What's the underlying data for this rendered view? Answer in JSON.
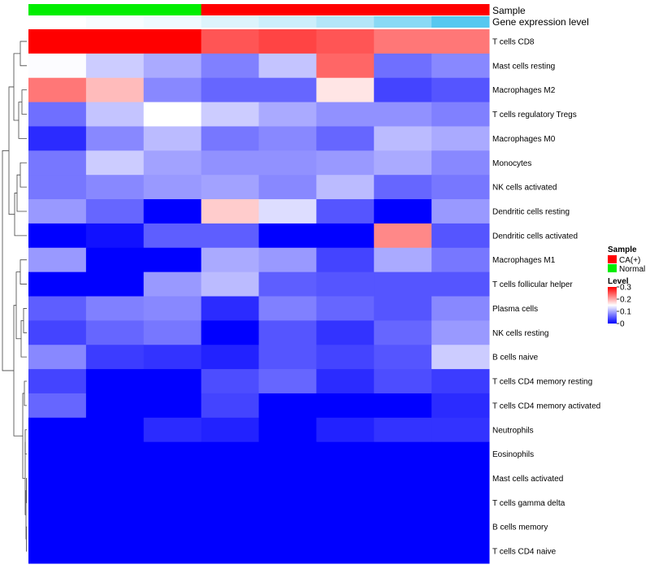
{
  "chart_data": {
    "type": "heatmap",
    "title": "",
    "xlabel": "",
    "ylabel": "",
    "annotation_tracks": [
      {
        "name": "Sample",
        "values": [
          "Normal",
          "Normal",
          "Normal",
          "CA(+)",
          "CA(+)",
          "CA(+)",
          "CA(+)",
          "CA(+)"
        ],
        "palette": {
          "CA(+)": "#ff0000",
          "Normal": "#00ee00"
        }
      },
      {
        "name": "Gene expression level",
        "values": [
          0.0,
          0.05,
          0.1,
          0.2,
          0.3,
          0.45,
          0.7,
          1.0
        ],
        "color_low": "#ffffff",
        "color_high": "#56c8f0"
      }
    ],
    "rows": [
      "T cells CD8",
      "Mast cells resting",
      "Macrophages M2",
      "T cells regulatory  Tregs",
      "Macrophages M0",
      "Monocytes",
      "NK cells activated",
      "Dendritic cells resting",
      "Dendritic cells activated",
      "Macrophages M1",
      "T cells follicular helper",
      "Plasma cells",
      "NK cells resting",
      "B cells naive",
      "T cells CD4 memory resting",
      "T cells CD4 memory activated",
      "Neutrophils",
      "Eosinophils",
      "Mast cells activated",
      "T cells gamma delta",
      "B cells memory",
      "T cells CD4 naive"
    ],
    "values": [
      [
        0.3,
        0.305,
        0.31,
        0.25,
        0.26,
        0.25,
        0.23,
        0.23
      ],
      [
        0.148,
        0.12,
        0.1,
        0.075,
        0.115,
        0.24,
        0.065,
        0.08
      ],
      [
        0.23,
        0.19,
        0.08,
        0.06,
        0.06,
        0.165,
        0.04,
        0.05
      ],
      [
        0.065,
        0.115,
        0.15,
        0.12,
        0.1,
        0.085,
        0.085,
        0.075
      ],
      [
        0.025,
        0.08,
        0.11,
        0.07,
        0.08,
        0.06,
        0.11,
        0.1
      ],
      [
        0.07,
        0.12,
        0.095,
        0.085,
        0.085,
        0.09,
        0.1,
        0.08
      ],
      [
        0.07,
        0.08,
        0.09,
        0.095,
        0.08,
        0.11,
        0.06,
        0.07
      ],
      [
        0.09,
        0.06,
        0.0,
        0.18,
        0.13,
        0.05,
        0.0,
        0.09
      ],
      [
        0.0,
        0.01,
        0.055,
        0.055,
        0.0,
        0.0,
        0.22,
        0.05
      ],
      [
        0.09,
        0.0,
        0.0,
        0.1,
        0.09,
        0.04,
        0.1,
        0.07
      ],
      [
        0.0,
        0.0,
        0.09,
        0.11,
        0.055,
        0.05,
        0.05,
        0.05
      ],
      [
        0.055,
        0.075,
        0.08,
        0.025,
        0.075,
        0.06,
        0.05,
        0.08
      ],
      [
        0.04,
        0.06,
        0.07,
        0.0,
        0.05,
        0.03,
        0.06,
        0.09
      ],
      [
        0.08,
        0.035,
        0.03,
        0.02,
        0.05,
        0.04,
        0.05,
        0.12
      ],
      [
        0.04,
        0.0,
        0.0,
        0.045,
        0.06,
        0.025,
        0.045,
        0.035
      ],
      [
        0.06,
        0.0,
        0.0,
        0.04,
        0.0,
        0.0,
        0.0,
        0.025
      ],
      [
        0.0,
        0.0,
        0.025,
        0.02,
        0.0,
        0.02,
        0.03,
        0.03
      ],
      [
        0.0,
        0.0,
        0.0,
        0.0,
        0.0,
        0.0,
        0.0,
        0.0
      ],
      [
        0.0,
        0.0,
        0.0,
        0.0,
        0.0,
        0.0,
        0.0,
        0.0
      ],
      [
        0.0,
        0.0,
        0.0,
        0.0,
        0.0,
        0.0,
        0.0,
        0.0
      ],
      [
        0.0,
        0.0,
        0.0,
        0.0,
        0.0,
        0.0,
        0.0,
        0.0
      ],
      [
        0.0,
        0.0,
        0.0,
        0.0,
        0.0,
        0.0,
        0.0,
        0.0
      ]
    ],
    "color_scale": {
      "min": 0,
      "mid": 0.15,
      "max": 0.3,
      "low": "#0000ff",
      "mid_color": "#ffffff",
      "high": "#ff0000"
    },
    "legend": {
      "sample_title": "Sample",
      "sample_entries": [
        {
          "label": "CA(+)",
          "color": "#ff0000"
        },
        {
          "label": "Normal",
          "color": "#00ee00"
        }
      ],
      "level_title": "Level",
      "level_ticks": [
        {
          "label": "0.3",
          "value": 0.3
        },
        {
          "label": "0.2",
          "value": 0.2
        },
        {
          "label": "0.1",
          "value": 0.1
        },
        {
          "label": "0",
          "value": 0.0
        }
      ],
      "placement": "right"
    },
    "row_dendrogram": {
      "merges": [
        [
          0,
          1,
          0.08
        ],
        [
          2,
          3,
          0.06
        ],
        [
          -2,
          4,
          0.1
        ],
        [
          -1,
          -3,
          0.16
        ],
        [
          5,
          6,
          0.08
        ],
        [
          -5,
          7,
          0.12
        ],
        [
          -6,
          8,
          0.15
        ],
        [
          -7,
          -4,
          0.22
        ],
        [
          9,
          10,
          0.08
        ],
        [
          11,
          12,
          0.04
        ],
        [
          -10,
          13,
          0.07
        ],
        [
          -9,
          -11,
          0.13
        ],
        [
          14,
          15,
          0.03
        ],
        [
          16,
          17,
          0.02
        ],
        [
          18,
          19,
          0.005
        ],
        [
          20,
          21,
          0.005
        ],
        [
          -15,
          -16,
          0.01
        ],
        [
          -14,
          -17,
          0.02
        ],
        [
          -13,
          -18,
          0.05
        ],
        [
          -12,
          -19,
          0.16
        ],
        [
          -8,
          -20,
          0.3
        ]
      ]
    }
  }
}
